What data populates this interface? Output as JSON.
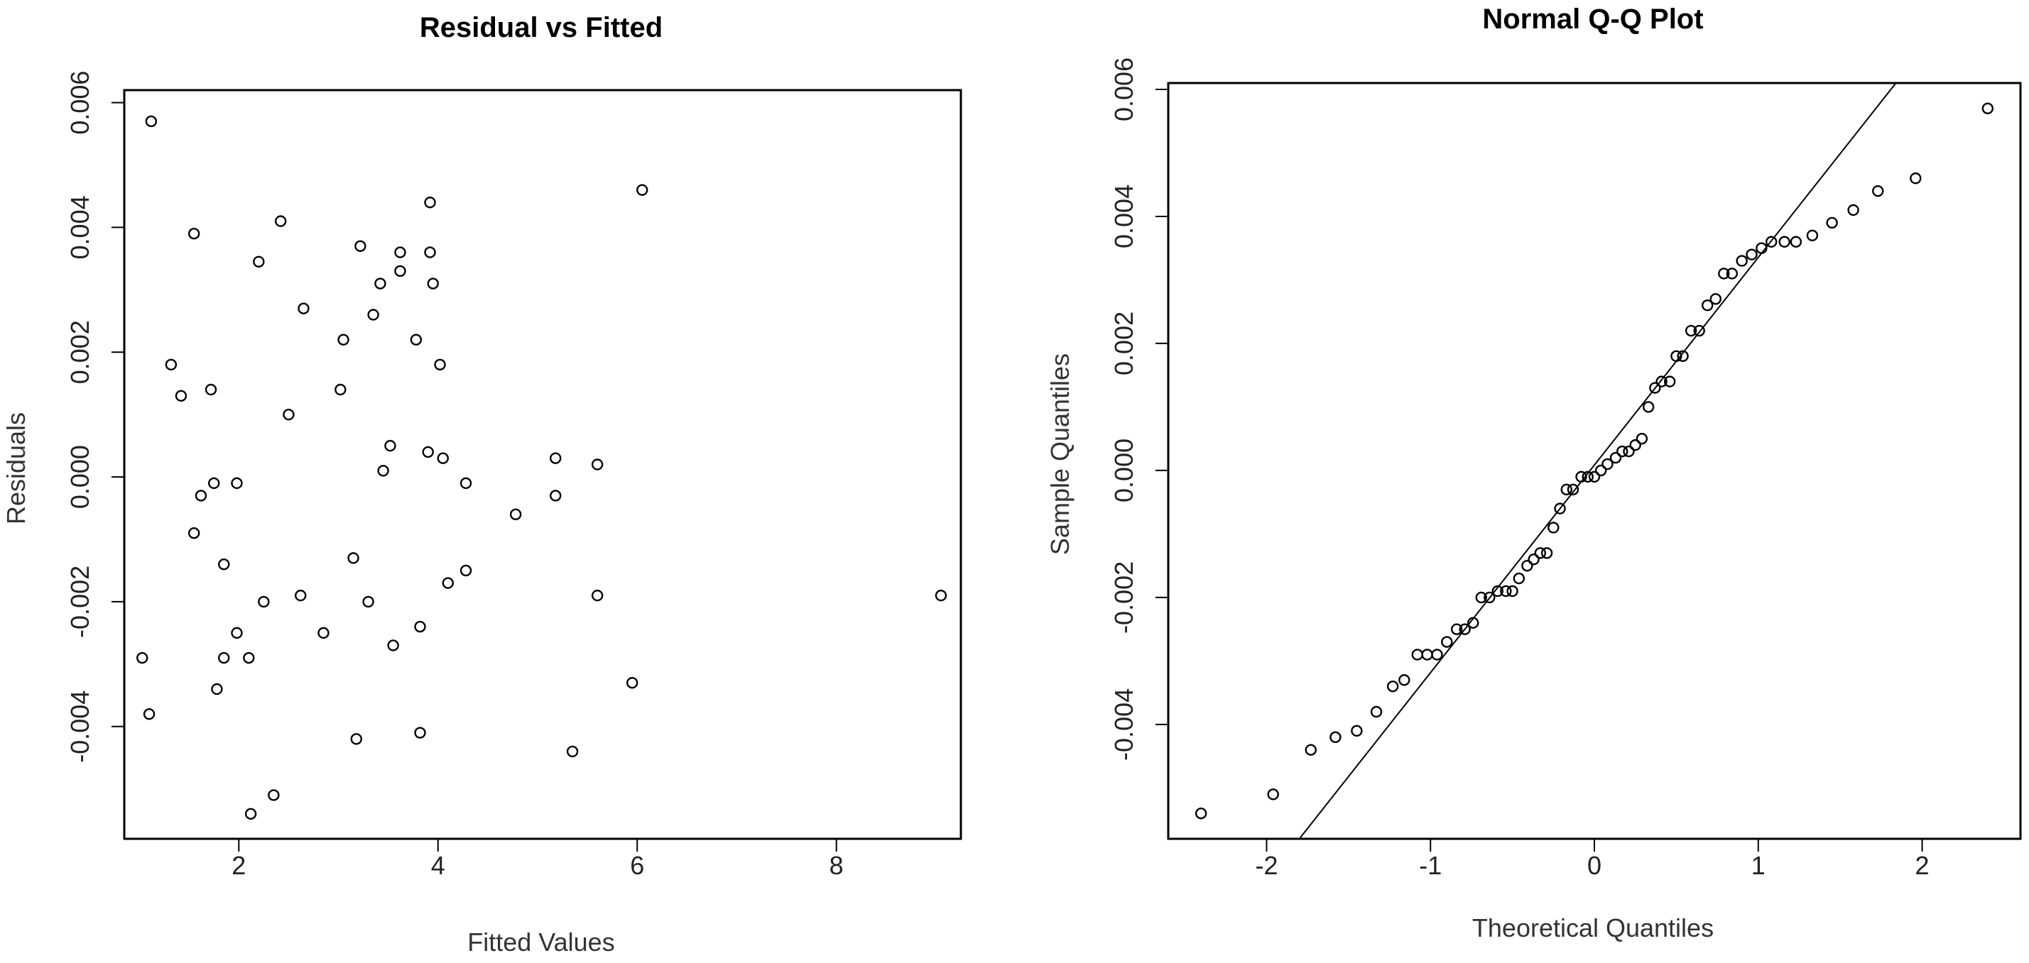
{
  "chart_data": [
    {
      "type": "scatter",
      "title": "Residual vs Fitted",
      "xlabel": "Fitted Values",
      "ylabel": "Residuals",
      "xlim": [
        0.85,
        9.25
      ],
      "ylim": [
        -0.0058,
        0.0062
      ],
      "xticks": [
        2,
        4,
        6,
        8
      ],
      "xtick_labels": [
        "2",
        "4",
        "6",
        "8"
      ],
      "yticks": [
        -0.004,
        -0.002,
        0.0,
        0.002,
        0.004,
        0.006
      ],
      "ytick_labels": [
        "-0.004",
        "-0.002",
        "0.000",
        "0.002",
        "0.004",
        "0.006"
      ],
      "grid": false,
      "points": [
        {
          "x": 1.12,
          "y": 0.0057
        },
        {
          "x": 1.55,
          "y": 0.0039
        },
        {
          "x": 2.42,
          "y": 0.0041
        },
        {
          "x": 2.2,
          "y": 0.00345
        },
        {
          "x": 3.22,
          "y": 0.0037
        },
        {
          "x": 3.62,
          "y": 0.0036
        },
        {
          "x": 3.92,
          "y": 0.0036
        },
        {
          "x": 3.92,
          "y": 0.0044
        },
        {
          "x": 6.05,
          "y": 0.0046
        },
        {
          "x": 3.62,
          "y": 0.0033
        },
        {
          "x": 3.42,
          "y": 0.0031
        },
        {
          "x": 3.95,
          "y": 0.0031
        },
        {
          "x": 2.65,
          "y": 0.0027
        },
        {
          "x": 3.35,
          "y": 0.0026
        },
        {
          "x": 3.05,
          "y": 0.0022
        },
        {
          "x": 3.78,
          "y": 0.0022
        },
        {
          "x": 1.32,
          "y": 0.0018
        },
        {
          "x": 4.02,
          "y": 0.0018
        },
        {
          "x": 1.42,
          "y": 0.0013
        },
        {
          "x": 1.72,
          "y": 0.0014
        },
        {
          "x": 3.02,
          "y": 0.0014
        },
        {
          "x": 2.5,
          "y": 0.001
        },
        {
          "x": 3.52,
          "y": 0.0005
        },
        {
          "x": 3.9,
          "y": 0.0004
        },
        {
          "x": 4.05,
          "y": 0.0003
        },
        {
          "x": 5.18,
          "y": 0.0003
        },
        {
          "x": 5.6,
          "y": 0.0002
        },
        {
          "x": 3.45,
          "y": 0.0001
        },
        {
          "x": 1.98,
          "y": -0.0001
        },
        {
          "x": 1.75,
          "y": -0.0001
        },
        {
          "x": 4.28,
          "y": -0.0001
        },
        {
          "x": 1.62,
          "y": -0.0003
        },
        {
          "x": 5.18,
          "y": -0.0003
        },
        {
          "x": 4.78,
          "y": -0.0006
        },
        {
          "x": 1.55,
          "y": -0.0009
        },
        {
          "x": 1.85,
          "y": -0.0014
        },
        {
          "x": 3.15,
          "y": -0.0013
        },
        {
          "x": 4.28,
          "y": -0.0015
        },
        {
          "x": 4.1,
          "y": -0.0017
        },
        {
          "x": 2.62,
          "y": -0.0019
        },
        {
          "x": 5.6,
          "y": -0.0019
        },
        {
          "x": 9.05,
          "y": -0.0019
        },
        {
          "x": 2.25,
          "y": -0.002
        },
        {
          "x": 3.3,
          "y": -0.002
        },
        {
          "x": 1.98,
          "y": -0.0025
        },
        {
          "x": 2.85,
          "y": -0.0025
        },
        {
          "x": 3.82,
          "y": -0.0024
        },
        {
          "x": 3.55,
          "y": -0.0027
        },
        {
          "x": 1.03,
          "y": -0.0029
        },
        {
          "x": 1.85,
          "y": -0.0029
        },
        {
          "x": 2.1,
          "y": -0.0029
        },
        {
          "x": 1.78,
          "y": -0.0034
        },
        {
          "x": 5.95,
          "y": -0.0033
        },
        {
          "x": 1.1,
          "y": -0.0038
        },
        {
          "x": 3.18,
          "y": -0.0042
        },
        {
          "x": 3.82,
          "y": -0.0041
        },
        {
          "x": 5.35,
          "y": -0.0044
        },
        {
          "x": 2.35,
          "y": -0.0051
        },
        {
          "x": 2.12,
          "y": -0.0054
        }
      ]
    },
    {
      "type": "scatter",
      "title": "Normal Q-Q Plot",
      "xlabel": "Theoretical Quantiles",
      "ylabel": "Sample Quantiles",
      "xlim": [
        -2.6,
        2.6
      ],
      "ylim": [
        -0.0058,
        0.0061
      ],
      "xticks": [
        -2,
        -1,
        0,
        1,
        2
      ],
      "xtick_labels": [
        "-2",
        "-1",
        "0",
        "1",
        "2"
      ],
      "yticks": [
        -0.004,
        -0.002,
        0.0,
        0.002,
        0.004,
        0.006
      ],
      "ytick_labels": [
        "-0.004",
        "-0.002",
        "0.000",
        "0.002",
        "0.004",
        "0.006"
      ],
      "grid": false,
      "reference_line": {
        "x1": -1.8,
        "y1": -0.0058,
        "x2": 1.84,
        "y2": 0.0061
      },
      "points": [
        {
          "x": -2.4,
          "y": -0.0054
        },
        {
          "x": -1.96,
          "y": -0.0051
        },
        {
          "x": -1.73,
          "y": -0.0044
        },
        {
          "x": -1.58,
          "y": -0.0042
        },
        {
          "x": -1.45,
          "y": -0.0041
        },
        {
          "x": -1.33,
          "y": -0.0038
        },
        {
          "x": -1.23,
          "y": -0.0034
        },
        {
          "x": -1.16,
          "y": -0.0033
        },
        {
          "x": -1.08,
          "y": -0.0029
        },
        {
          "x": -1.02,
          "y": -0.0029
        },
        {
          "x": -0.96,
          "y": -0.0029
        },
        {
          "x": -0.9,
          "y": -0.0027
        },
        {
          "x": -0.84,
          "y": -0.0025
        },
        {
          "x": -0.79,
          "y": -0.0025
        },
        {
          "x": -0.74,
          "y": -0.0024
        },
        {
          "x": -0.69,
          "y": -0.002
        },
        {
          "x": -0.64,
          "y": -0.002
        },
        {
          "x": -0.59,
          "y": -0.0019
        },
        {
          "x": -0.54,
          "y": -0.0019
        },
        {
          "x": -0.5,
          "y": -0.0019
        },
        {
          "x": -0.46,
          "y": -0.0017
        },
        {
          "x": -0.41,
          "y": -0.0015
        },
        {
          "x": -0.37,
          "y": -0.0014
        },
        {
          "x": -0.33,
          "y": -0.0013
        },
        {
          "x": -0.29,
          "y": -0.0013
        },
        {
          "x": -0.25,
          "y": -0.0009
        },
        {
          "x": -0.21,
          "y": -0.0006
        },
        {
          "x": -0.17,
          "y": -0.0003
        },
        {
          "x": -0.13,
          "y": -0.0003
        },
        {
          "x": -0.08,
          "y": -0.0001
        },
        {
          "x": -0.04,
          "y": -0.0001
        },
        {
          "x": 0.0,
          "y": -0.0001
        },
        {
          "x": 0.04,
          "y": 0.0
        },
        {
          "x": 0.08,
          "y": 0.0001
        },
        {
          "x": 0.13,
          "y": 0.0002
        },
        {
          "x": 0.17,
          "y": 0.0003
        },
        {
          "x": 0.21,
          "y": 0.0003
        },
        {
          "x": 0.25,
          "y": 0.0004
        },
        {
          "x": 0.29,
          "y": 0.0005
        },
        {
          "x": 0.33,
          "y": 0.001
        },
        {
          "x": 0.37,
          "y": 0.0013
        },
        {
          "x": 0.41,
          "y": 0.0014
        },
        {
          "x": 0.46,
          "y": 0.0014
        },
        {
          "x": 0.5,
          "y": 0.0018
        },
        {
          "x": 0.54,
          "y": 0.0018
        },
        {
          "x": 0.59,
          "y": 0.0022
        },
        {
          "x": 0.64,
          "y": 0.0022
        },
        {
          "x": 0.69,
          "y": 0.0026
        },
        {
          "x": 0.74,
          "y": 0.0027
        },
        {
          "x": 0.79,
          "y": 0.0031
        },
        {
          "x": 0.84,
          "y": 0.0031
        },
        {
          "x": 0.9,
          "y": 0.0033
        },
        {
          "x": 0.96,
          "y": 0.0034
        },
        {
          "x": 1.02,
          "y": 0.0035
        },
        {
          "x": 1.08,
          "y": 0.0036
        },
        {
          "x": 1.16,
          "y": 0.0036
        },
        {
          "x": 1.23,
          "y": 0.0036
        },
        {
          "x": 1.33,
          "y": 0.0037
        },
        {
          "x": 1.45,
          "y": 0.0039
        },
        {
          "x": 1.58,
          "y": 0.0041
        },
        {
          "x": 1.73,
          "y": 0.0044
        },
        {
          "x": 1.96,
          "y": 0.0046
        },
        {
          "x": 2.4,
          "y": 0.0057
        }
      ]
    }
  ]
}
